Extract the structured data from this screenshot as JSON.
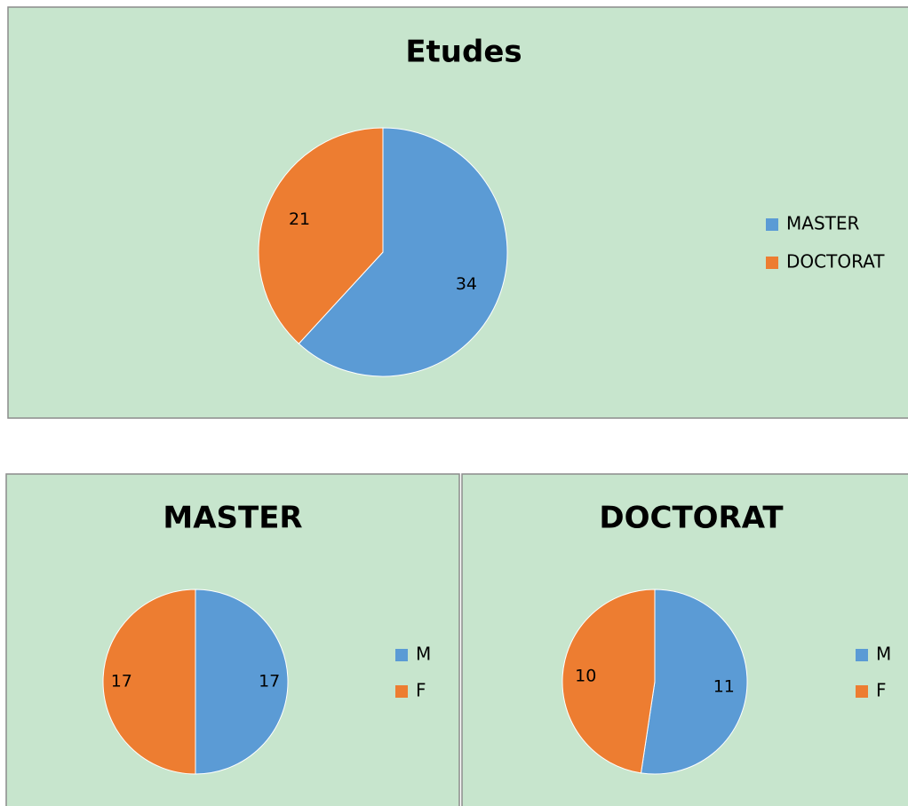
{
  "chart_data": [
    {
      "type": "pie",
      "title": "Etudes",
      "categories": [
        "MASTER",
        "DOCTORAT"
      ],
      "values": [
        34,
        21
      ],
      "colors": [
        "#5b9bd5",
        "#ed7d31"
      ]
    },
    {
      "type": "pie",
      "title": "MASTER",
      "categories": [
        "M",
        "F"
      ],
      "values": [
        17,
        17
      ],
      "colors": [
        "#5b9bd5",
        "#ed7d31"
      ]
    },
    {
      "type": "pie",
      "title": "DOCTORAT",
      "categories": [
        "M",
        "F"
      ],
      "values": [
        11,
        10
      ],
      "colors": [
        "#5b9bd5",
        "#ed7d31"
      ]
    }
  ]
}
